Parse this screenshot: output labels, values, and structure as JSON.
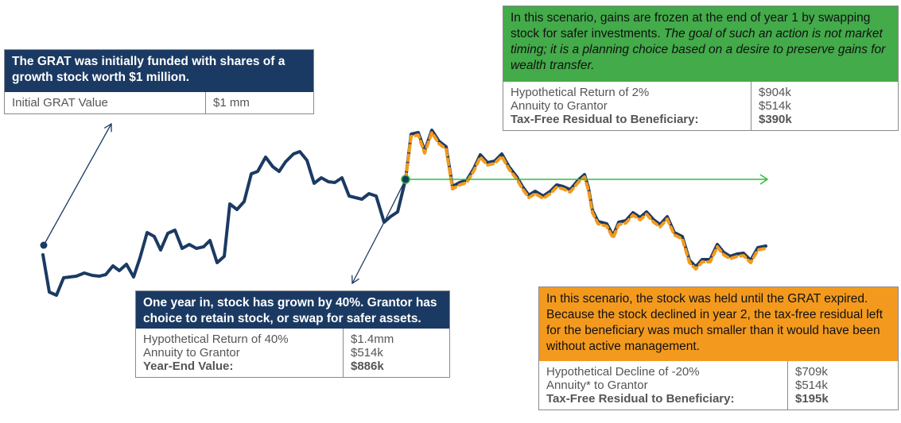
{
  "colors": {
    "navy": "#1b3a63",
    "green": "#43ab4a",
    "orange": "#f39a1e",
    "text_gray": "#555555"
  },
  "initial_box": {
    "header": "The GRAT was initially funded with shares of a growth stock worth $1 million.",
    "label": "Initial GRAT Value",
    "value": "$1 mm"
  },
  "year_one_box": {
    "header": "One year in, stock has grown by 40%. Grantor has choice to retain stock, or swap for safer assets.",
    "rows": [
      {
        "label": "Hypothetical Return of 40%",
        "value": "$1.4mm"
      },
      {
        "label": "Annuity to Grantor",
        "value": "$514k"
      },
      {
        "label": "Year-End Value:",
        "value": "$886k"
      }
    ]
  },
  "swap_box": {
    "header_plain": "In this scenario, gains are frozen at the end of year 1 by swapping stock for safer investments. ",
    "header_italic": "The goal of such an action is not market timing; it is a planning choice based on a desire to preserve gains for wealth transfer.",
    "rows": [
      {
        "label": "Hypothetical Return of 2%",
        "value": "$904k"
      },
      {
        "label": "Annuity to Grantor",
        "value": "$514k"
      },
      {
        "label": "Tax-Free Residual to Beneficiary:",
        "value": "$390k"
      }
    ]
  },
  "hold_box": {
    "header": "In this scenario, the stock was held until the GRAT expired. Because the stock declined in year 2, the tax-free residual left for the beneficiary was much smaller than it would have been without active management.",
    "rows": [
      {
        "label": "Hypothetical Decline of -20%",
        "value": "$709k"
      },
      {
        "label": "Annuity* to Grantor",
        "value": "$514k"
      },
      {
        "label": "Tax-Free Residual to Beneficiary:",
        "value": "$195k"
      }
    ]
  }
}
